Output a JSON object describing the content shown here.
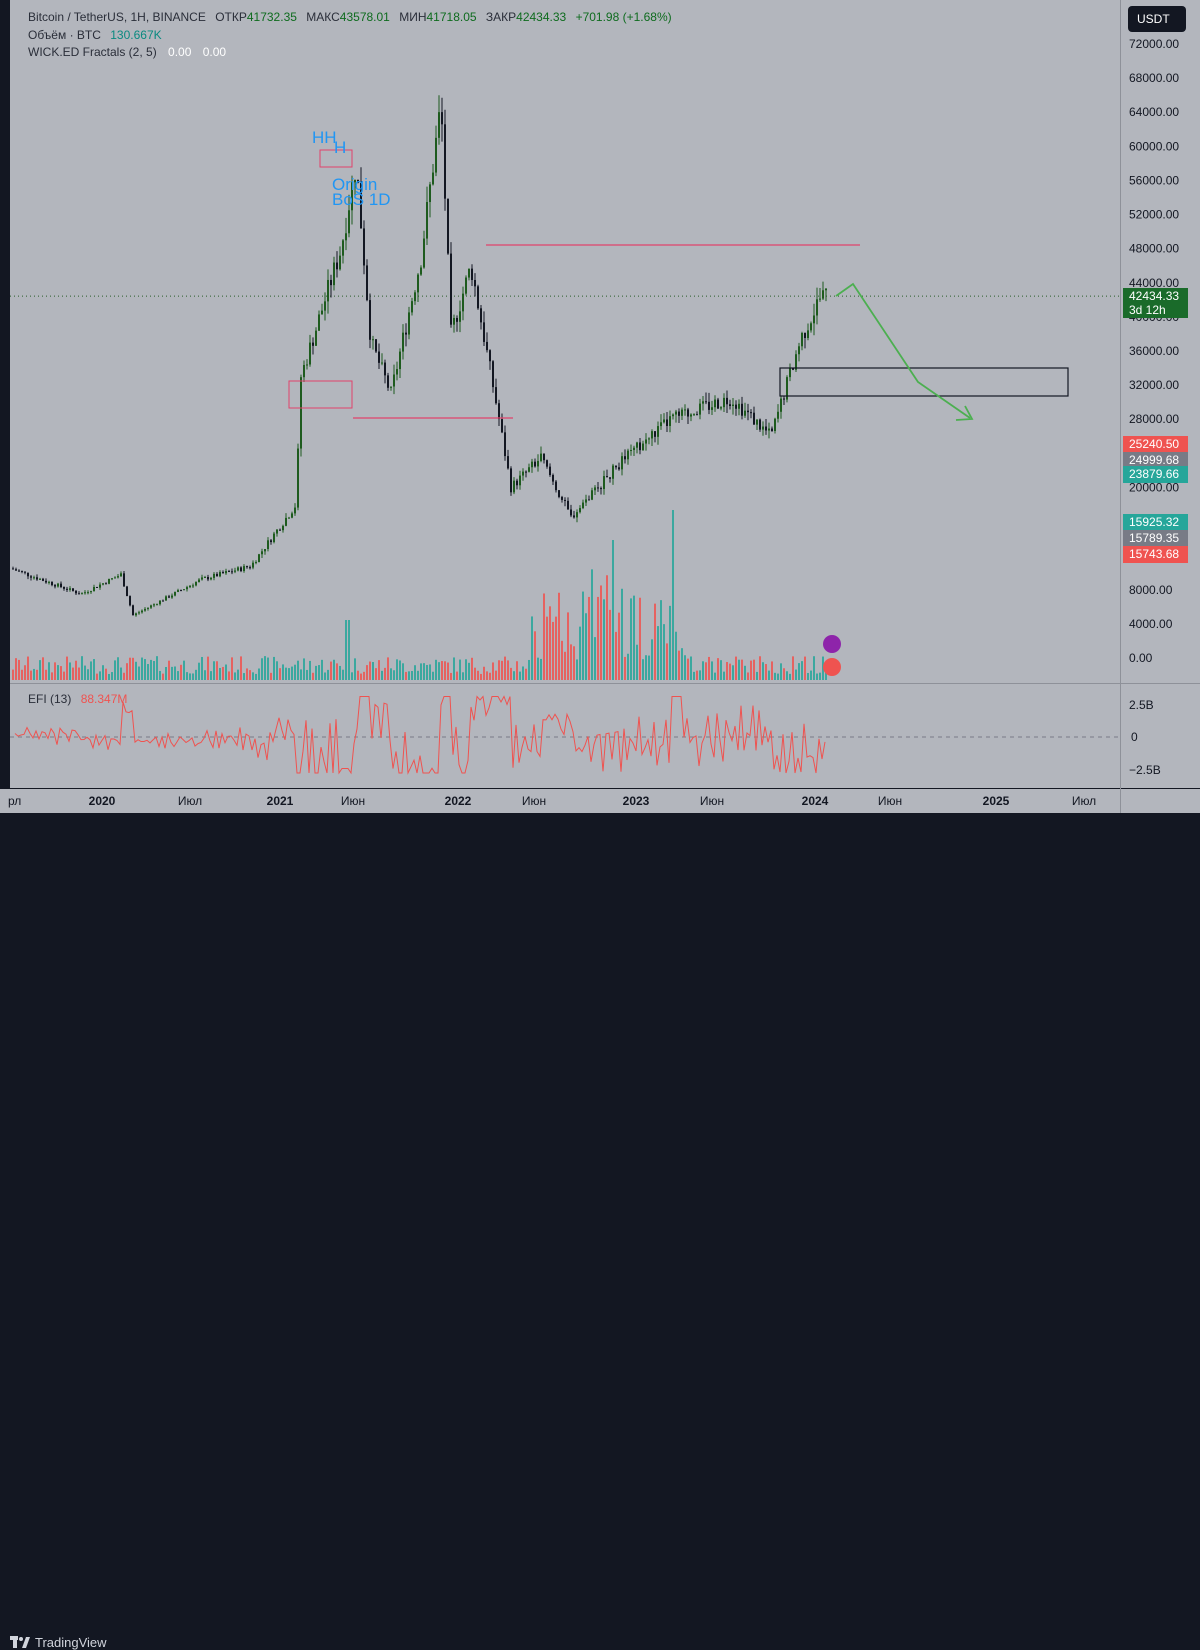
{
  "legend": {
    "symbol": "Bitcoin / TetherUS, 1H, BINANCE",
    "open_label": "ОТКР",
    "open": "41732.35",
    "high_label": "МАКС",
    "high": "43578.01",
    "low_label": "МИН",
    "low": "41718.05",
    "close_label": "ЗАКР",
    "close": "42434.33",
    "change": "+701.98 (+1.68%)",
    "volume_label": "Объём · BTC",
    "volume": "130.667K",
    "fractals_label": "WICK.ED Fractals (2, 5)",
    "fractals_v1": "0.00",
    "fractals_v2": "0.00",
    "efi_label": "EFI (13)",
    "efi_value": "88.347M"
  },
  "currency_button": "USDT",
  "price_axis": [
    "72000.00",
    "68000.00",
    "64000.00",
    "60000.00",
    "56000.00",
    "52000.00",
    "48000.00",
    "44000.00",
    "40000.00",
    "36000.00",
    "32000.00",
    "28000.00",
    "24000.00",
    "20000.00",
    "16000.00",
    "12000.00",
    "8000.00",
    "4000.00",
    "0.00"
  ],
  "efi_axis": [
    "2.5B",
    "0",
    "−2.5B"
  ],
  "price_tags": [
    {
      "value": "42434.33",
      "sub": "3d 12h",
      "color": "#1a6b2a"
    },
    {
      "value": "25240.50",
      "color": "#ef5350"
    },
    {
      "value": "24999.68",
      "color": "#787b86"
    },
    {
      "value": "23879.66",
      "color": "#26a69a"
    },
    {
      "value": "15925.32",
      "color": "#26a69a"
    },
    {
      "value": "15789.35",
      "color": "#787b86"
    },
    {
      "value": "15743.68",
      "color": "#ef5350"
    }
  ],
  "time_axis": [
    "рл",
    "2020",
    "Июл",
    "2021",
    "Июн",
    "2022",
    "Июн",
    "2023",
    "Июн",
    "2024",
    "Июн",
    "2025",
    "Июл"
  ],
  "annotations": {
    "hh": "HH",
    "h": "H",
    "origin": "Origin",
    "bos": "BoS 1D"
  },
  "footer_brand": "TradingView",
  "colors": {
    "up": "#1e5b1e",
    "down": "#131722",
    "vol_up": "#26a69a",
    "vol_down": "#ef5350",
    "level": "#e0436c",
    "arrow": "#4caf50",
    "efi": "#ef5350"
  },
  "chart_data": {
    "type": "candlestick",
    "symbol": "BTCUSDT",
    "x": [
      "2019-08",
      "2019-11",
      "2020-02",
      "2020-03",
      "2020-06",
      "2020-09",
      "2020-11",
      "2021-01",
      "2021-02",
      "2021-04",
      "2021-05",
      "2021-07",
      "2021-09",
      "2021-11",
      "2022-01",
      "2022-03",
      "2022-05",
      "2022-06",
      "2022-08",
      "2022-11",
      "2023-01",
      "2023-03",
      "2023-06",
      "2023-09",
      "2023-11",
      "2024-01"
    ],
    "close": [
      10500,
      7500,
      9800,
      5000,
      9200,
      10800,
      18000,
      33000,
      48000,
      58000,
      37000,
      31000,
      47000,
      65000,
      38000,
      46000,
      30000,
      20000,
      23500,
      16500,
      23000,
      28000,
      30500,
      26000,
      37500,
      42434
    ],
    "ylim": [
      0,
      74000
    ],
    "levels": [
      48200,
      28200
    ],
    "zone": [
      30600,
      34000
    ]
  }
}
